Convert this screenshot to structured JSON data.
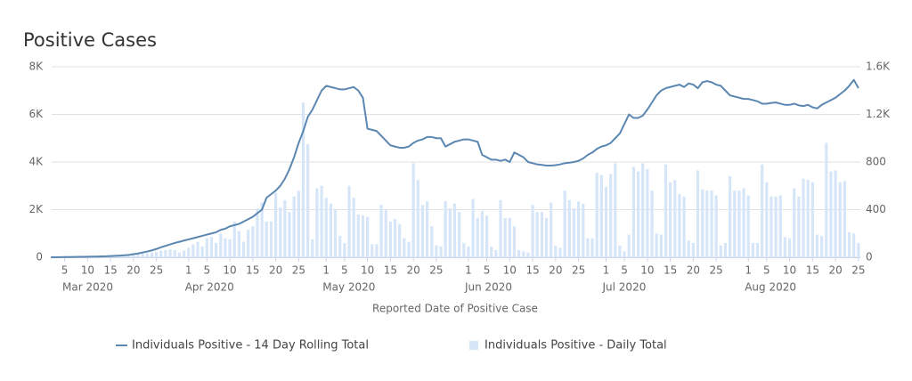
{
  "chart_data": {
    "type": "line",
    "title": "Positive Cases",
    "x_label": "Reported Date of Positive Case",
    "x": [
      "2020-03-02",
      "2020-03-03",
      "2020-03-04",
      "2020-03-05",
      "2020-03-06",
      "2020-03-07",
      "2020-03-08",
      "2020-03-09",
      "2020-03-10",
      "2020-03-11",
      "2020-03-12",
      "2020-03-13",
      "2020-03-14",
      "2020-03-15",
      "2020-03-16",
      "2020-03-17",
      "2020-03-18",
      "2020-03-19",
      "2020-03-20",
      "2020-03-21",
      "2020-03-22",
      "2020-03-23",
      "2020-03-24",
      "2020-03-25",
      "2020-03-26",
      "2020-03-27",
      "2020-03-28",
      "2020-03-29",
      "2020-03-30",
      "2020-03-31",
      "2020-04-01",
      "2020-04-02",
      "2020-04-03",
      "2020-04-04",
      "2020-04-05",
      "2020-04-06",
      "2020-04-07",
      "2020-04-08",
      "2020-04-09",
      "2020-04-10",
      "2020-04-11",
      "2020-04-12",
      "2020-04-13",
      "2020-04-14",
      "2020-04-15",
      "2020-04-16",
      "2020-04-17",
      "2020-04-18",
      "2020-04-19",
      "2020-04-20",
      "2020-04-21",
      "2020-04-22",
      "2020-04-23",
      "2020-04-24",
      "2020-04-25",
      "2020-04-26",
      "2020-04-27",
      "2020-04-28",
      "2020-04-29",
      "2020-04-30",
      "2020-05-01",
      "2020-05-02",
      "2020-05-03",
      "2020-05-04",
      "2020-05-05",
      "2020-05-06",
      "2020-05-07",
      "2020-05-08",
      "2020-05-09",
      "2020-05-10",
      "2020-05-11",
      "2020-05-12",
      "2020-05-13",
      "2020-05-14",
      "2020-05-15",
      "2020-05-16",
      "2020-05-17",
      "2020-05-18",
      "2020-05-19",
      "2020-05-20",
      "2020-05-21",
      "2020-05-22",
      "2020-05-23",
      "2020-05-24",
      "2020-05-25",
      "2020-05-26",
      "2020-05-27",
      "2020-05-28",
      "2020-05-29",
      "2020-05-30",
      "2020-05-31",
      "2020-06-01",
      "2020-06-02",
      "2020-06-03",
      "2020-06-04",
      "2020-06-05",
      "2020-06-06",
      "2020-06-07",
      "2020-06-08",
      "2020-06-09",
      "2020-06-10",
      "2020-06-11",
      "2020-06-12",
      "2020-06-13",
      "2020-06-14",
      "2020-06-15",
      "2020-06-16",
      "2020-06-17",
      "2020-06-18",
      "2020-06-19",
      "2020-06-20",
      "2020-06-21",
      "2020-06-22",
      "2020-06-23",
      "2020-06-24",
      "2020-06-25",
      "2020-06-26",
      "2020-06-27",
      "2020-06-28",
      "2020-06-29",
      "2020-06-30",
      "2020-07-01",
      "2020-07-02",
      "2020-07-03",
      "2020-07-04",
      "2020-07-05",
      "2020-07-06",
      "2020-07-07",
      "2020-07-08",
      "2020-07-09",
      "2020-07-10",
      "2020-07-11",
      "2020-07-12",
      "2020-07-13",
      "2020-07-14",
      "2020-07-15",
      "2020-07-16",
      "2020-07-17",
      "2020-07-18",
      "2020-07-19",
      "2020-07-20",
      "2020-07-21",
      "2020-07-22",
      "2020-07-23",
      "2020-07-24",
      "2020-07-25",
      "2020-07-26",
      "2020-07-27",
      "2020-07-28",
      "2020-07-29",
      "2020-07-30",
      "2020-07-31",
      "2020-08-01",
      "2020-08-02",
      "2020-08-03",
      "2020-08-04",
      "2020-08-05",
      "2020-08-06",
      "2020-08-07",
      "2020-08-08",
      "2020-08-09",
      "2020-08-10",
      "2020-08-11",
      "2020-08-12",
      "2020-08-13",
      "2020-08-14",
      "2020-08-15",
      "2020-08-16",
      "2020-08-17",
      "2020-08-18",
      "2020-08-19",
      "2020-08-20",
      "2020-08-21",
      "2020-08-22",
      "2020-08-23",
      "2020-08-24",
      "2020-08-25"
    ],
    "series": [
      {
        "name": "Individuals Positive - 14 Day Rolling Total",
        "type": "line",
        "color": "#5b87b1",
        "values": [
          0,
          0,
          5,
          10,
          10,
          15,
          20,
          20,
          25,
          30,
          30,
          35,
          40,
          50,
          60,
          70,
          85,
          100,
          130,
          160,
          200,
          240,
          290,
          350,
          420,
          480,
          540,
          600,
          650,
          700,
          750,
          800,
          850,
          900,
          950,
          1000,
          1050,
          1150,
          1200,
          1300,
          1350,
          1400,
          1500,
          1600,
          1700,
          1850,
          2000,
          2500,
          2650,
          2800,
          3000,
          3300,
          3700,
          4200,
          4800,
          5300,
          5900,
          6200,
          6600,
          7000,
          7200,
          7150,
          7100,
          7050,
          7050,
          7100,
          7150,
          7000,
          6700,
          5400,
          5350,
          5300,
          5100,
          4900,
          4700,
          4650,
          4600,
          4600,
          4650,
          4800,
          4900,
          4950,
          5050,
          5050,
          5000,
          5000,
          4650,
          4750,
          4850,
          4900,
          4950,
          4950,
          4900,
          4850,
          4300,
          4200,
          4100,
          4100,
          4050,
          4100,
          4000,
          4400,
          4300,
          4200,
          4000,
          3950,
          3900,
          3880,
          3850,
          3850,
          3870,
          3900,
          3950,
          3970,
          4000,
          4050,
          4150,
          4300,
          4400,
          4550,
          4650,
          4700,
          4800,
          5000,
          5200,
          5600,
          6000,
          5850,
          5850,
          5950,
          6200,
          6500,
          6800,
          7000,
          7100,
          7150,
          7200,
          7250,
          7150,
          7300,
          7250,
          7100,
          7350,
          7400,
          7350,
          7250,
          7200,
          7000,
          6800,
          6750,
          6700,
          6650,
          6650,
          6600,
          6550,
          6450,
          6450,
          6480,
          6500,
          6450,
          6400,
          6400,
          6450,
          6380,
          6350,
          6400,
          6300,
          6250,
          6400,
          6500,
          6600,
          6700,
          6850,
          7000,
          7200,
          7450,
          7100
        ]
      },
      {
        "name": "Individuals Positive - Daily Total",
        "type": "bar",
        "axis": "y2",
        "color": "#d6e6f8",
        "values": [
          0,
          0,
          1,
          2,
          1,
          2,
          3,
          2,
          3,
          4,
          3,
          5,
          6,
          8,
          10,
          10,
          15,
          18,
          20,
          25,
          30,
          35,
          40,
          45,
          55,
          60,
          65,
          60,
          40,
          55,
          80,
          110,
          130,
          90,
          160,
          170,
          120,
          200,
          160,
          150,
          300,
          220,
          130,
          230,
          260,
          410,
          460,
          300,
          300,
          540,
          420,
          480,
          380,
          510,
          560,
          1300,
          950,
          150,
          580,
          600,
          500,
          450,
          400,
          180,
          120,
          600,
          500,
          360,
          350,
          340,
          110,
          110,
          440,
          400,
          300,
          320,
          280,
          160,
          130,
          790,
          650,
          440,
          470,
          260,
          100,
          90,
          470,
          410,
          450,
          380,
          120,
          90,
          490,
          330,
          390,
          350,
          90,
          60,
          480,
          330,
          330,
          260,
          60,
          50,
          40,
          440,
          380,
          380,
          330,
          460,
          100,
          80,
          560,
          480,
          410,
          470,
          450,
          160,
          160,
          710,
          690,
          590,
          700,
          790,
          100,
          50,
          190,
          760,
          720,
          790,
          740,
          560,
          200,
          190,
          780,
          630,
          650,
          530,
          510,
          140,
          120,
          730,
          570,
          560,
          560,
          520,
          100,
          120,
          680,
          560,
          560,
          580,
          520,
          120,
          120,
          780,
          630,
          510,
          510,
          520,
          170,
          160,
          580,
          510,
          660,
          650,
          630,
          190,
          180,
          960,
          720,
          730,
          630,
          640,
          210,
          200,
          120
        ]
      }
    ],
    "xlim": [
      "2020-03-01",
      "2020-08-26"
    ],
    "xticks": [
      {
        "value": "2020-03-05",
        "label": "5"
      },
      {
        "value": "2020-03-10",
        "label": "10"
      },
      {
        "value": "2020-03-15",
        "label": "15"
      },
      {
        "value": "2020-03-20",
        "label": "20"
      },
      {
        "value": "2020-03-25",
        "label": "25"
      },
      {
        "value": "2020-04-01",
        "label": "1"
      },
      {
        "value": "2020-04-05",
        "label": "5"
      },
      {
        "value": "2020-04-10",
        "label": "10"
      },
      {
        "value": "2020-04-15",
        "label": "15"
      },
      {
        "value": "2020-04-20",
        "label": "20"
      },
      {
        "value": "2020-04-25",
        "label": "25"
      },
      {
        "value": "2020-05-01",
        "label": "1"
      },
      {
        "value": "2020-05-05",
        "label": "5"
      },
      {
        "value": "2020-05-10",
        "label": "10"
      },
      {
        "value": "2020-05-15",
        "label": "15"
      },
      {
        "value": "2020-05-20",
        "label": "20"
      },
      {
        "value": "2020-05-25",
        "label": "25"
      },
      {
        "value": "2020-06-01",
        "label": "1"
      },
      {
        "value": "2020-06-05",
        "label": "5"
      },
      {
        "value": "2020-06-10",
        "label": "10"
      },
      {
        "value": "2020-06-15",
        "label": "15"
      },
      {
        "value": "2020-06-20",
        "label": "20"
      },
      {
        "value": "2020-06-25",
        "label": "25"
      },
      {
        "value": "2020-07-01",
        "label": "1"
      },
      {
        "value": "2020-07-05",
        "label": "5"
      },
      {
        "value": "2020-07-10",
        "label": "10"
      },
      {
        "value": "2020-07-15",
        "label": "15"
      },
      {
        "value": "2020-07-20",
        "label": "20"
      },
      {
        "value": "2020-07-25",
        "label": "25"
      },
      {
        "value": "2020-08-01",
        "label": "1"
      },
      {
        "value": "2020-08-05",
        "label": "5"
      },
      {
        "value": "2020-08-10",
        "label": "10"
      },
      {
        "value": "2020-08-15",
        "label": "15"
      },
      {
        "value": "2020-08-20",
        "label": "20"
      },
      {
        "value": "2020-08-25",
        "label": "25"
      }
    ],
    "month_labels": [
      {
        "value": "2020-03-01",
        "label": "Mar 2020"
      },
      {
        "value": "2020-04-01",
        "label": "Apr 2020"
      },
      {
        "value": "2020-05-01",
        "label": "May 2020"
      },
      {
        "value": "2020-06-01",
        "label": "Jun 2020"
      },
      {
        "value": "2020-07-01",
        "label": "Jul 2020"
      },
      {
        "value": "2020-08-01",
        "label": "Aug 2020"
      }
    ],
    "ylim": [
      0,
      8000
    ],
    "yticks": [
      0,
      {
        "value": 2000,
        "label": "2K"
      },
      {
        "value": 4000,
        "label": "4K"
      },
      {
        "value": 6000,
        "label": "6K"
      },
      {
        "value": 8000,
        "label": "8K"
      }
    ],
    "y2lim": [
      0,
      1600
    ],
    "y2ticks": [
      0,
      400,
      800,
      {
        "value": 1200,
        "label": "1.2K"
      },
      {
        "value": 1600,
        "label": "1.6K"
      }
    ],
    "grid": true
  }
}
